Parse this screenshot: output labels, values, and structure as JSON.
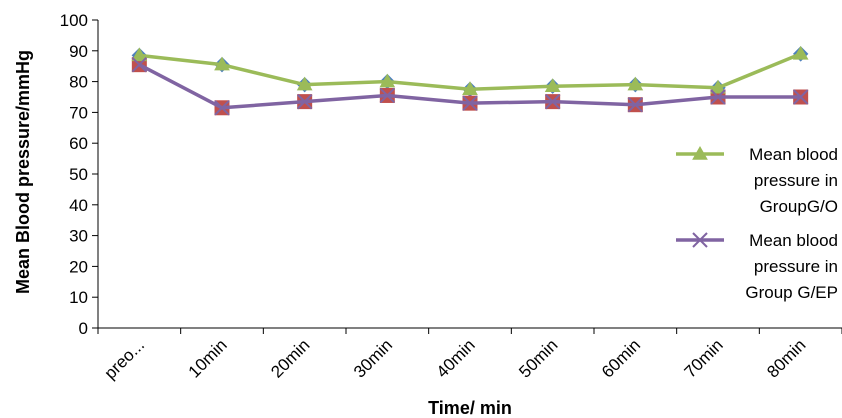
{
  "chart_data": {
    "type": "line",
    "title": "",
    "xlabel": "Time/ min",
    "ylabel": "Mean Blood pressure/mmHg",
    "categories": [
      "preo...",
      "10min",
      "20min",
      "30min",
      "40min",
      "50min",
      "60min",
      "70min",
      "80min"
    ],
    "ylim": [
      0,
      100
    ],
    "yticks": [
      0,
      10,
      20,
      30,
      40,
      50,
      60,
      70,
      80,
      90,
      100
    ],
    "grid": false,
    "legend_position": "right",
    "series": [
      {
        "name": "Mean blood pressure in GroupG/O",
        "legend_lines": [
          "Mean blood",
          "pressure in",
          "GroupG/O"
        ],
        "color": "#9bbb59",
        "marker": "triangle",
        "underlying_marker": "diamond",
        "underlying_marker_color": "#4f81bd",
        "values": [
          88.5,
          85.5,
          79,
          80,
          77.5,
          78.5,
          79,
          78,
          89
        ]
      },
      {
        "name": "Mean blood pressure in Group G/EP",
        "legend_lines": [
          "Mean blood",
          "pressure in",
          "Group G/EP"
        ],
        "color": "#8064a2",
        "marker": "x",
        "underlying_marker": "square",
        "underlying_marker_color": "#c0504d",
        "values": [
          85.5,
          71.5,
          73.5,
          75.5,
          73,
          73.5,
          72.5,
          75,
          75
        ]
      }
    ]
  }
}
